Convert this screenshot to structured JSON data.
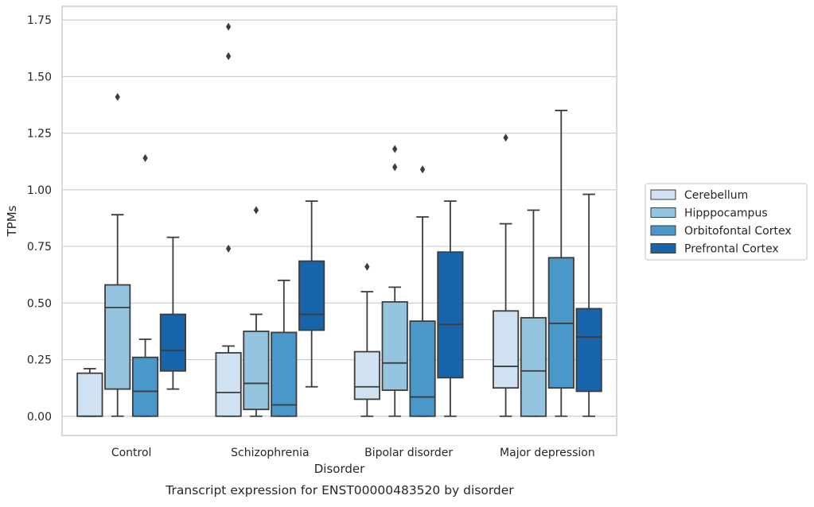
{
  "chart_data": {
    "type": "box",
    "xlabel": "Disorder",
    "ylabel": "TPMs",
    "caption": "Transcript expression for ENST00000483520 by disorder",
    "ylim": [
      -0.085,
      1.81
    ],
    "yticks": [
      "0.00",
      "0.25",
      "0.50",
      "0.75",
      "1.00",
      "1.25",
      "1.50",
      "1.75"
    ],
    "grid": "horizontal",
    "legend_position": "right",
    "categories": [
      "Control",
      "Schizophrenia",
      "Bipolar disorder",
      "Major depression"
    ],
    "series": [
      {
        "name": "Cerebellum",
        "color": "#d0e1f2",
        "boxes": [
          {
            "whislo": 0.0,
            "q1": 0.0,
            "med": 0.0,
            "q3": 0.19,
            "whishi": 0.21,
            "fliers": []
          },
          {
            "whislo": 0.0,
            "q1": 0.0,
            "med": 0.105,
            "q3": 0.28,
            "whishi": 0.31,
            "fliers": [
              0.74,
              1.59,
              1.72
            ]
          },
          {
            "whislo": 0.0,
            "q1": 0.075,
            "med": 0.13,
            "q3": 0.285,
            "whishi": 0.55,
            "fliers": [
              0.66
            ]
          },
          {
            "whislo": 0.0,
            "q1": 0.125,
            "med": 0.22,
            "q3": 0.465,
            "whishi": 0.85,
            "fliers": [
              1.23
            ]
          }
        ]
      },
      {
        "name": "Hipppocampus",
        "color": "#94c4df",
        "boxes": [
          {
            "whislo": 0.0,
            "q1": 0.12,
            "med": 0.48,
            "q3": 0.58,
            "whishi": 0.89,
            "fliers": [
              1.41
            ]
          },
          {
            "whislo": 0.0,
            "q1": 0.03,
            "med": 0.145,
            "q3": 0.375,
            "whishi": 0.45,
            "fliers": [
              0.91
            ]
          },
          {
            "whislo": 0.0,
            "q1": 0.115,
            "med": 0.235,
            "q3": 0.505,
            "whishi": 0.57,
            "fliers": [
              1.1,
              1.18
            ]
          },
          {
            "whislo": 0.0,
            "q1": 0.0,
            "med": 0.2,
            "q3": 0.435,
            "whishi": 0.91,
            "fliers": []
          }
        ]
      },
      {
        "name": "Orbitofontal Cortex",
        "color": "#4a98c9",
        "boxes": [
          {
            "whislo": 0.0,
            "q1": 0.0,
            "med": 0.11,
            "q3": 0.26,
            "whishi": 0.34,
            "fliers": [
              1.14
            ]
          },
          {
            "whislo": 0.0,
            "q1": 0.0,
            "med": 0.05,
            "q3": 0.37,
            "whishi": 0.6,
            "fliers": []
          },
          {
            "whislo": 0.0,
            "q1": 0.0,
            "med": 0.085,
            "q3": 0.42,
            "whishi": 0.88,
            "fliers": [
              1.09
            ]
          },
          {
            "whislo": 0.0,
            "q1": 0.125,
            "med": 0.41,
            "q3": 0.7,
            "whishi": 1.35,
            "fliers": []
          }
        ]
      },
      {
        "name": "Prefrontal Cortex",
        "color": "#1764ab",
        "boxes": [
          {
            "whislo": 0.12,
            "q1": 0.2,
            "med": 0.29,
            "q3": 0.45,
            "whishi": 0.79,
            "fliers": []
          },
          {
            "whislo": 0.13,
            "q1": 0.38,
            "med": 0.45,
            "q3": 0.685,
            "whishi": 0.95,
            "fliers": []
          },
          {
            "whislo": 0.0,
            "q1": 0.17,
            "med": 0.405,
            "q3": 0.725,
            "whishi": 0.95,
            "fliers": []
          },
          {
            "whislo": 0.0,
            "q1": 0.11,
            "med": 0.35,
            "q3": 0.475,
            "whishi": 0.98,
            "fliers": []
          }
        ]
      }
    ]
  }
}
